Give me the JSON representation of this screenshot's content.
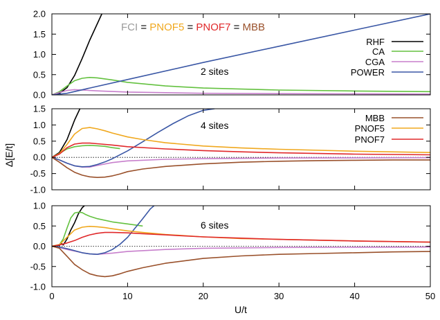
{
  "figure": {
    "xlabel": "U/t",
    "ylabel": "Δ[E/t]",
    "xlim": [
      0,
      50
    ],
    "xticks": [
      0,
      10,
      20,
      30,
      40,
      50
    ],
    "header": [
      {
        "text": "FCI",
        "color": "#9a9a9a"
      },
      {
        "text": " = ",
        "color": "#000000"
      },
      {
        "text": "PNOF5",
        "color": "#f0a81e"
      },
      {
        "text": " = ",
        "color": "#000000"
      },
      {
        "text": "PNOF7",
        "color": "#e0282a"
      },
      {
        "text": " = ",
        "color": "#000000"
      },
      {
        "text": "MBB",
        "color": "#99502a"
      }
    ]
  },
  "colors": {
    "RHF": "#000000",
    "CA": "#63c13f",
    "CGA": "#c77fcc",
    "POWER": "#3a57a5",
    "MBB": "#99502a",
    "PNOF5": "#f0a81e",
    "PNOF7": "#e0282a",
    "zero_line": "#000000"
  },
  "chart_data": [
    {
      "type": "line",
      "label": "2 sites",
      "ylim": [
        0,
        2
      ],
      "yticks": [
        "0.0",
        "0.5",
        "1.0",
        "1.5",
        "2.0"
      ],
      "zero_line": false,
      "legend": [
        "RHF",
        "CA",
        "CGA",
        "POWER"
      ],
      "series": [
        {
          "name": "RHF",
          "x": [
            0,
            1,
            2,
            3,
            4,
            5,
            6.6
          ],
          "y": [
            0,
            0.04,
            0.18,
            0.48,
            0.9,
            1.35,
            2.0
          ]
        },
        {
          "name": "CA",
          "x": [
            0,
            1,
            2,
            3,
            4,
            5,
            6,
            8,
            10,
            15,
            20,
            30,
            40,
            50
          ],
          "y": [
            0,
            0.08,
            0.22,
            0.35,
            0.41,
            0.43,
            0.42,
            0.37,
            0.31,
            0.22,
            0.17,
            0.12,
            0.095,
            0.08
          ]
        },
        {
          "name": "CGA",
          "x": [
            0,
            1,
            2,
            3,
            4,
            6,
            10,
            20,
            30,
            50
          ],
          "y": [
            0,
            0.06,
            0.11,
            0.13,
            0.12,
            0.1,
            0.07,
            0.04,
            0.03,
            0.02
          ]
        },
        {
          "name": "POWER",
          "x": [
            0,
            2,
            5,
            10,
            20,
            30,
            40,
            50
          ],
          "y": [
            0,
            0.04,
            0.17,
            0.38,
            0.8,
            1.2,
            1.6,
            2.0
          ]
        }
      ]
    },
    {
      "type": "line",
      "label": "4 sites",
      "ylim": [
        -1,
        1.5
      ],
      "yticks": [
        "-1.0",
        "-0.5",
        "0.0",
        "0.5",
        "1.0",
        "1.5"
      ],
      "zero_line": true,
      "legend": [
        "MBB",
        "PNOF5",
        "PNOF7"
      ],
      "series": [
        {
          "name": "RHF",
          "x": [
            0,
            1,
            2,
            3,
            3.7
          ],
          "y": [
            0,
            0.15,
            0.55,
            1.15,
            1.5
          ]
        },
        {
          "name": "CA",
          "x": [
            0,
            1,
            2,
            3,
            4,
            5,
            6,
            7,
            8,
            9
          ],
          "y": [
            0,
            0.12,
            0.26,
            0.33,
            0.36,
            0.37,
            0.36,
            0.34,
            0.3,
            0.27
          ]
        },
        {
          "name": "CGA",
          "x": [
            0,
            1,
            2,
            3,
            4,
            5,
            6,
            8,
            10,
            15,
            20,
            30,
            50
          ],
          "y": [
            0,
            -0.08,
            -0.18,
            -0.26,
            -0.3,
            -0.3,
            -0.25,
            -0.16,
            -0.11,
            -0.06,
            -0.04,
            -0.02,
            -0.01
          ]
        },
        {
          "name": "POWER",
          "x": [
            0,
            1,
            2,
            3,
            4,
            5,
            6,
            7,
            8,
            10,
            12,
            14,
            16,
            18,
            20,
            21.5
          ],
          "y": [
            0,
            -0.08,
            -0.18,
            -0.26,
            -0.29,
            -0.28,
            -0.22,
            -0.14,
            -0.04,
            0.2,
            0.48,
            0.77,
            1.04,
            1.28,
            1.45,
            1.5
          ]
        },
        {
          "name": "MBB",
          "x": [
            0,
            1,
            2,
            3,
            4,
            5,
            6,
            7,
            8,
            9,
            10,
            12,
            15,
            20,
            25,
            30,
            35,
            40,
            45,
            50
          ],
          "y": [
            0,
            -0.15,
            -0.32,
            -0.46,
            -0.55,
            -0.6,
            -0.62,
            -0.61,
            -0.57,
            -0.51,
            -0.44,
            -0.36,
            -0.28,
            -0.2,
            -0.15,
            -0.12,
            -0.1,
            -0.09,
            -0.08,
            -0.08
          ]
        },
        {
          "name": "PNOF5",
          "x": [
            0,
            1,
            2,
            3,
            4,
            5,
            6,
            7,
            8,
            10,
            12,
            15,
            20,
            25,
            30,
            40,
            50
          ],
          "y": [
            0,
            0.12,
            0.4,
            0.72,
            0.89,
            0.92,
            0.88,
            0.82,
            0.75,
            0.63,
            0.55,
            0.45,
            0.35,
            0.29,
            0.25,
            0.19,
            0.15
          ]
        },
        {
          "name": "PNOF7",
          "x": [
            0,
            1,
            2,
            3,
            4,
            5,
            6,
            8,
            10,
            15,
            20,
            25,
            30,
            40,
            50
          ],
          "y": [
            0,
            0.1,
            0.3,
            0.41,
            0.44,
            0.44,
            0.42,
            0.38,
            0.33,
            0.26,
            0.21,
            0.17,
            0.14,
            0.1,
            0.08
          ]
        }
      ]
    },
    {
      "type": "line",
      "label": "6 sites",
      "ylim": [
        -1,
        1
      ],
      "yticks": [
        "-1.0",
        "-0.5",
        "0.0",
        "0.5",
        "1.0"
      ],
      "zero_line": true,
      "legend": [],
      "series": [
        {
          "name": "RHF",
          "x": [
            0,
            1,
            1.2,
            1.5,
            2,
            2.5,
            3,
            3.5,
            4,
            4.3
          ],
          "y": [
            0,
            0.02,
            0.08,
            0.03,
            0.18,
            0.4,
            0.58,
            0.8,
            0.95,
            1.0
          ]
        },
        {
          "name": "CA",
          "x": [
            0,
            1,
            1.5,
            2,
            2.5,
            3,
            3.5,
            4,
            4.5,
            5,
            6,
            8,
            10,
            12
          ],
          "y": [
            0,
            0.04,
            0.18,
            0.45,
            0.7,
            0.82,
            0.84,
            0.83,
            0.78,
            0.74,
            0.68,
            0.6,
            0.55,
            0.5
          ]
        },
        {
          "name": "CGA",
          "x": [
            0,
            1,
            2,
            3,
            4,
            5,
            6,
            8,
            10,
            15,
            20,
            30,
            50
          ],
          "y": [
            0,
            -0.03,
            -0.08,
            -0.12,
            -0.16,
            -0.19,
            -0.2,
            -0.17,
            -0.13,
            -0.08,
            -0.05,
            -0.03,
            -0.02
          ]
        },
        {
          "name": "POWER",
          "x": [
            0,
            1,
            2,
            3,
            4,
            5,
            6,
            7,
            8,
            9,
            10,
            11,
            12,
            13,
            13.5
          ],
          "y": [
            0,
            -0.02,
            -0.06,
            -0.11,
            -0.16,
            -0.19,
            -0.2,
            -0.16,
            -0.08,
            0.05,
            0.22,
            0.45,
            0.68,
            0.92,
            1.0
          ]
        },
        {
          "name": "MBB",
          "x": [
            0,
            1,
            2,
            3,
            4,
            5,
            6,
            7,
            8,
            9,
            10,
            12,
            15,
            20,
            25,
            30,
            35,
            40,
            45,
            50
          ],
          "y": [
            0,
            -0.05,
            -0.25,
            -0.45,
            -0.58,
            -0.68,
            -0.73,
            -0.75,
            -0.73,
            -0.68,
            -0.62,
            -0.53,
            -0.42,
            -0.3,
            -0.24,
            -0.2,
            -0.18,
            -0.16,
            -0.14,
            -0.13
          ]
        },
        {
          "name": "PNOF5",
          "x": [
            0,
            1,
            2,
            3,
            4,
            5,
            6,
            7,
            8,
            10,
            12,
            15,
            20,
            25,
            30,
            40,
            50
          ],
          "y": [
            0,
            0.04,
            0.22,
            0.4,
            0.47,
            0.49,
            0.48,
            0.46,
            0.43,
            0.38,
            0.34,
            0.29,
            0.23,
            0.19,
            0.17,
            0.13,
            0.1
          ]
        },
        {
          "name": "PNOF7",
          "x": [
            0,
            1,
            2,
            3,
            4,
            5,
            6,
            7,
            8,
            10,
            12,
            15,
            20,
            25,
            30,
            40,
            50
          ],
          "y": [
            0,
            0.03,
            0.08,
            0.14,
            0.22,
            0.28,
            0.32,
            0.34,
            0.34,
            0.33,
            0.31,
            0.28,
            0.23,
            0.2,
            0.17,
            0.13,
            0.1
          ]
        }
      ]
    }
  ]
}
